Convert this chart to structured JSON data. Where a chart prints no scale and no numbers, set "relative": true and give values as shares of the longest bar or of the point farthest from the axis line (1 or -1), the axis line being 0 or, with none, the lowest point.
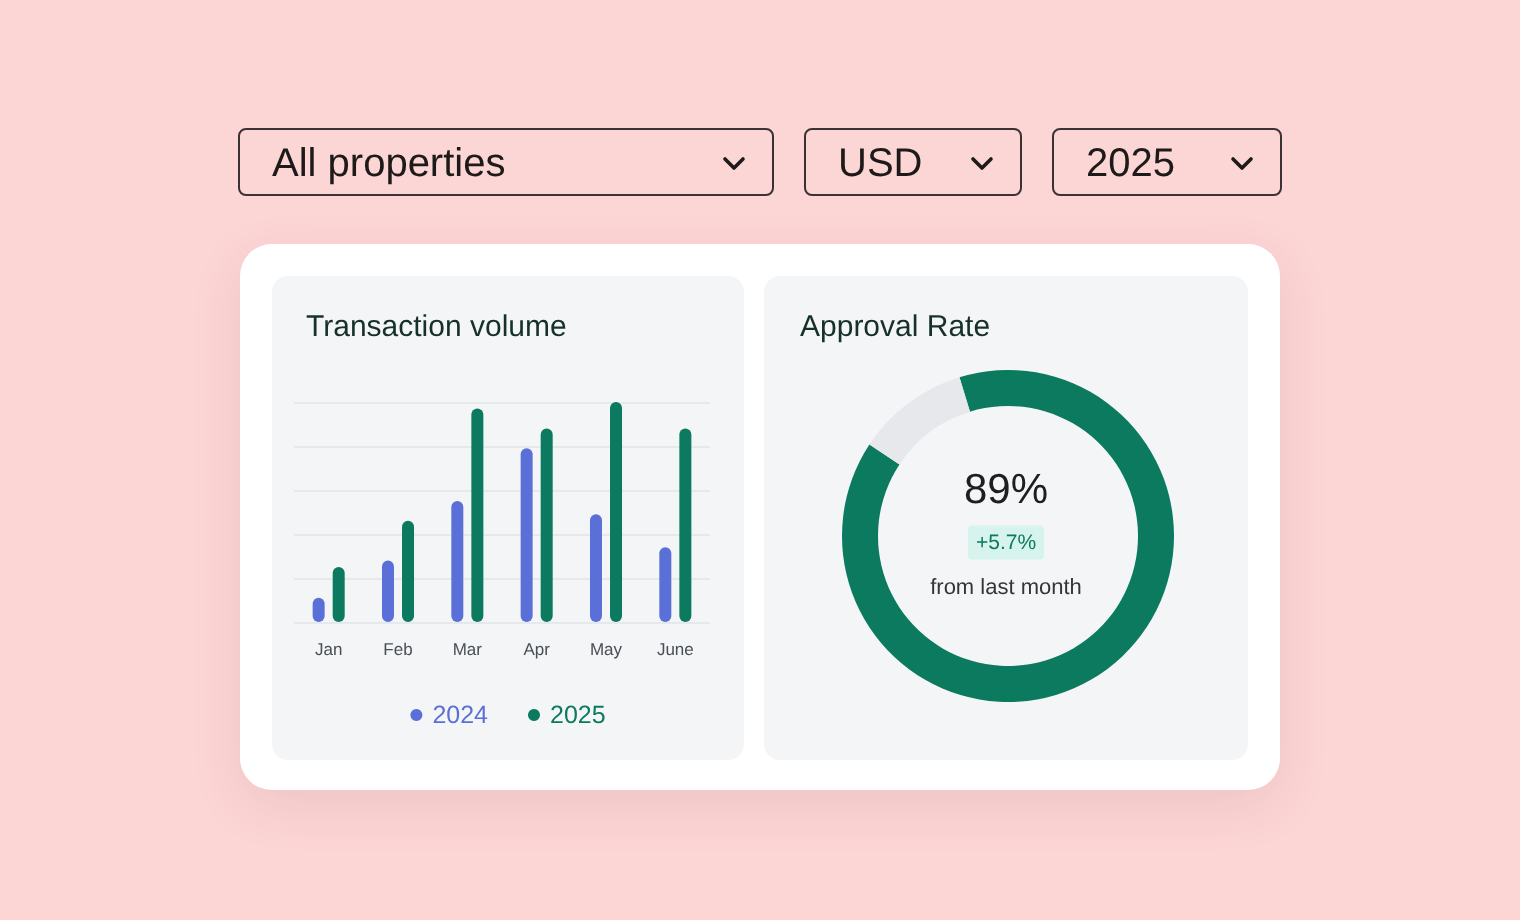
{
  "chart_data": [
    {
      "type": "other",
      "annotations": [
        "All properties",
        "USD",
        "2025"
      ]
    },
    {
      "type": "bar",
      "title": "Transaction volume",
      "categories": [
        "Jan",
        "Feb",
        "Mar",
        "Apr",
        "May",
        "June"
      ],
      "series": [
        {
          "name": "2024",
          "color": "#5a70d8",
          "values": [
            0.11,
            0.28,
            0.55,
            0.79,
            0.49,
            0.34
          ]
        },
        {
          "name": "2025",
          "color": "#0b7a5f",
          "values": [
            0.25,
            0.46,
            0.97,
            0.88,
            1,
            0.88
          ]
        }
      ],
      "relative": true,
      "grid": "y",
      "legend": "bottom"
    },
    {
      "type": "donut",
      "title": "Approval Rate",
      "categories": [
        null,
        null
      ],
      "values": [
        89,
        11
      ],
      "colors": [
        "#0b7a5f",
        "#e6e8ec"
      ],
      "annotations": [
        "89%",
        "+5.7%",
        "from last month"
      ]
    }
  ]
}
